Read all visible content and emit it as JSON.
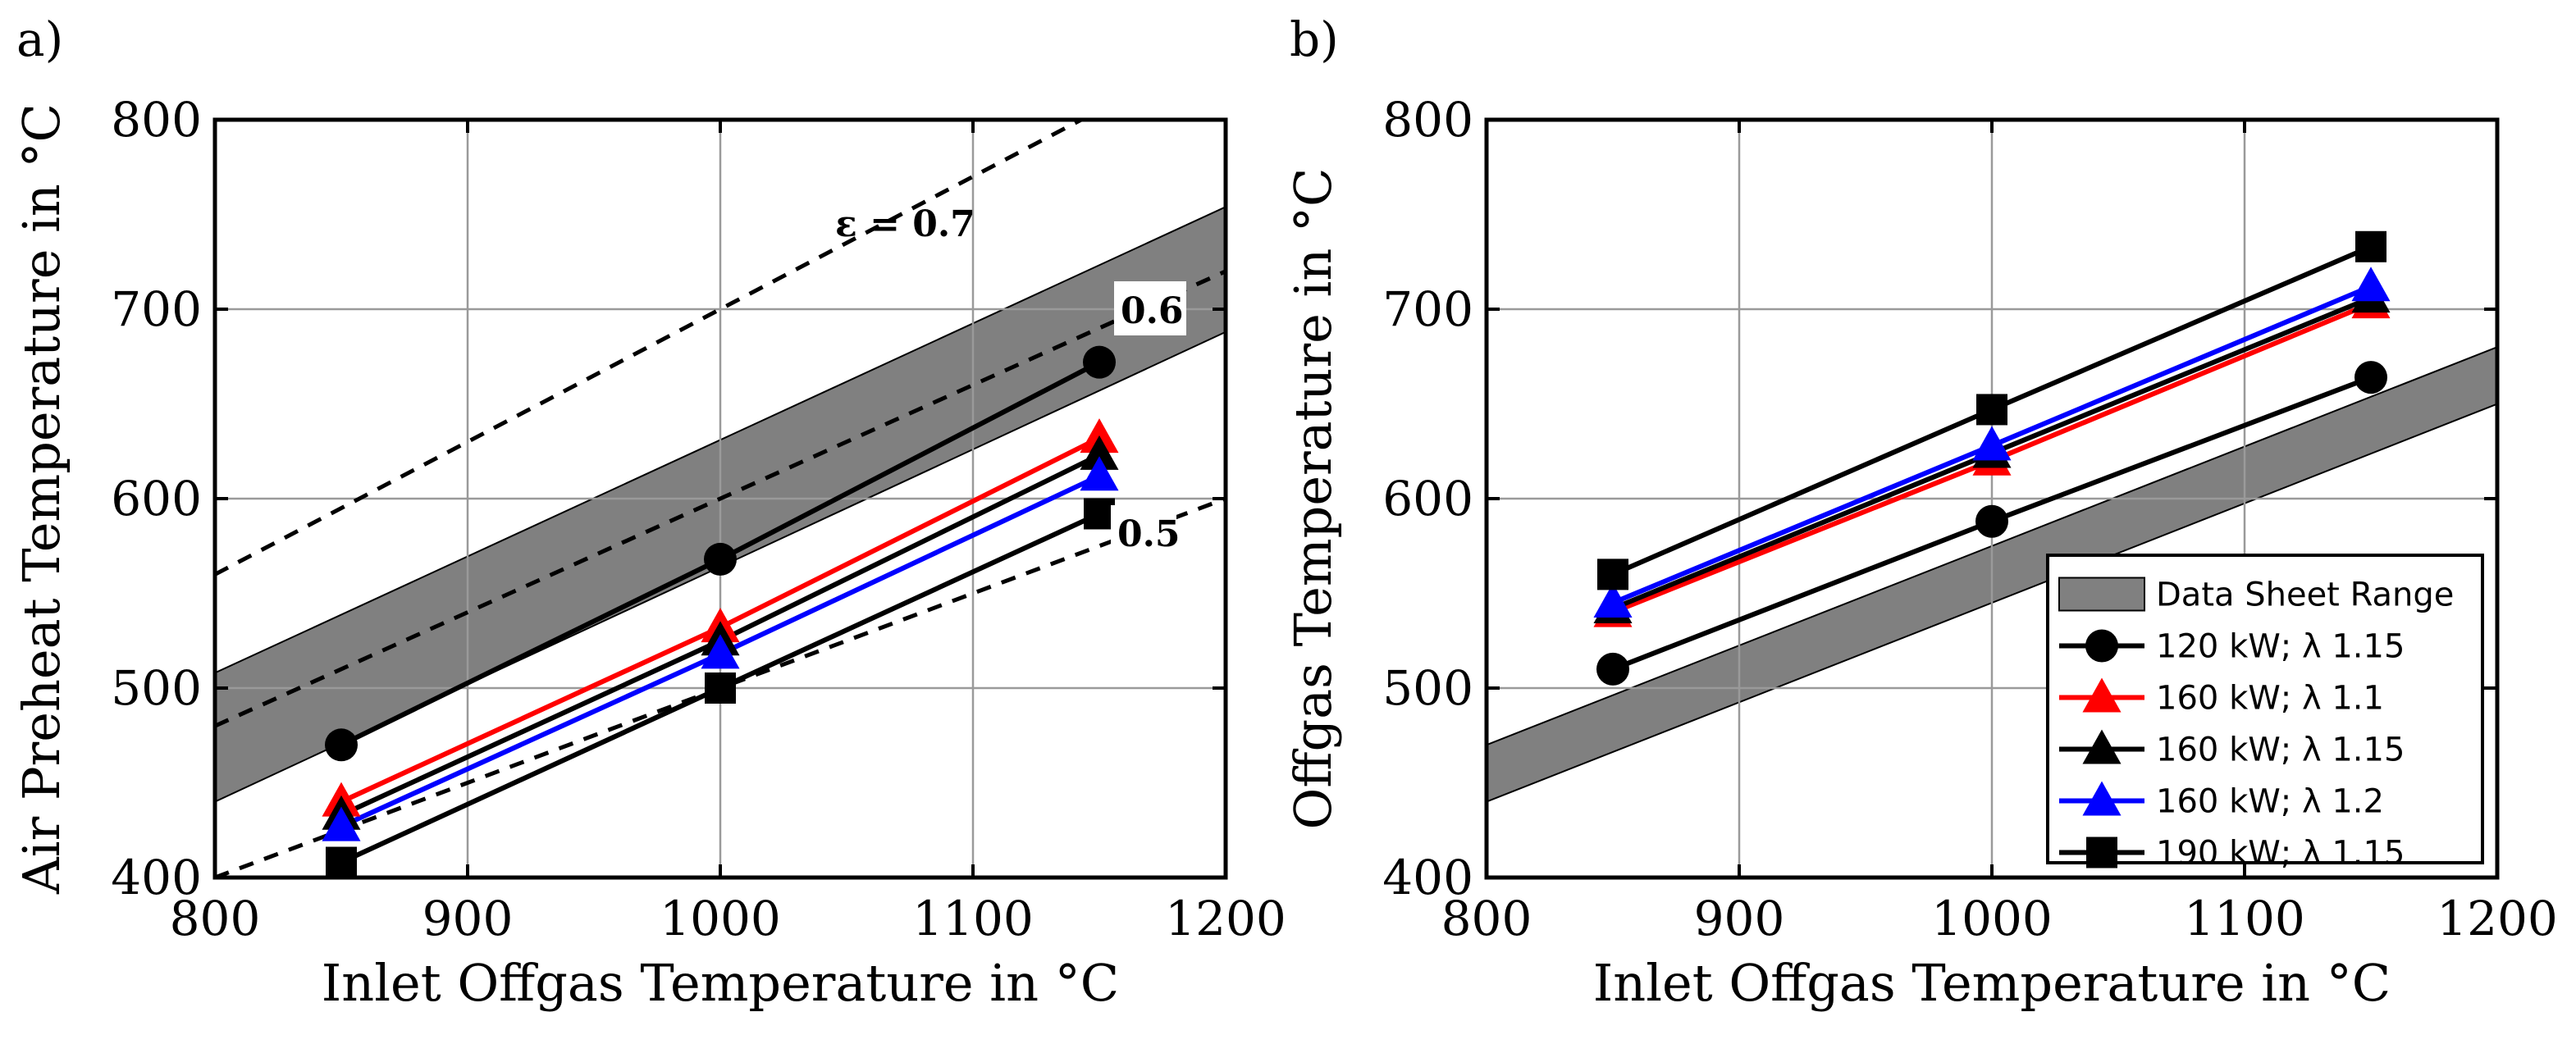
{
  "chart_data": [
    {
      "type": "line",
      "panel_label": "a)",
      "xlabel": "Inlet Offgas Temperature in °C",
      "ylabel": "Air Preheat Temperature in °C",
      "xlim": [
        800,
        1200
      ],
      "ylim": [
        400,
        800
      ],
      "xticks": [
        "800",
        "900",
        "1000",
        "1100",
        "1200"
      ],
      "yticks": [
        "400",
        "500",
        "600",
        "700",
        "800"
      ],
      "grid": true,
      "band": {
        "name": "Data Sheet Range",
        "x": [
          800,
          1200
        ],
        "lower": [
          440,
          688
        ],
        "upper": [
          508,
          754
        ]
      },
      "reference_lines": [
        {
          "label": "ε = 0.7",
          "x": [
            800,
            1200
          ],
          "y": [
            560,
            840
          ]
        },
        {
          "label": "0.6",
          "x": [
            800,
            1200
          ],
          "y": [
            480,
            720
          ]
        },
        {
          "label": "0.5",
          "x": [
            800,
            1200
          ],
          "y": [
            400,
            600
          ]
        }
      ],
      "series": [
        {
          "name": "120 kW; λ 1.15",
          "color": "#000000",
          "marker": "circle",
          "x": [
            850,
            1000,
            1150
          ],
          "y": [
            470,
            568,
            672
          ]
        },
        {
          "name": "160 kW; λ 1.1",
          "color": "#ff0000",
          "marker": "triangle",
          "x": [
            850,
            1000,
            1150
          ],
          "y": [
            440,
            532,
            632
          ]
        },
        {
          "name": "160 kW; λ 1.15",
          "color": "#000000",
          "marker": "triangle",
          "x": [
            850,
            1000,
            1150
          ],
          "y": [
            433,
            525,
            623
          ]
        },
        {
          "name": "160 kW; λ 1.2",
          "color": "#0000ff",
          "marker": "triangle",
          "x": [
            850,
            1000,
            1150
          ],
          "y": [
            427,
            518,
            612
          ]
        },
        {
          "name": "190 kW; λ 1.15",
          "color": "#000000",
          "marker": "square",
          "x": [
            850,
            1000,
            1150
          ],
          "y": [
            408,
            500,
            592
          ]
        }
      ]
    },
    {
      "type": "line",
      "panel_label": "b)",
      "xlabel": "Inlet Offgas Temperature in °C",
      "ylabel": "Offgas Temperature in °C",
      "xlim": [
        800,
        1200
      ],
      "ylim": [
        400,
        800
      ],
      "xticks": [
        "800",
        "900",
        "1000",
        "1100",
        "1200"
      ],
      "yticks": [
        "400",
        "500",
        "600",
        "700",
        "800"
      ],
      "grid": true,
      "band": {
        "name": "Data Sheet Range",
        "x": [
          800,
          1200
        ],
        "lower": [
          440,
          650
        ],
        "upper": [
          470,
          680
        ]
      },
      "legend": {
        "position": "bottom-right"
      },
      "series": [
        {
          "name": "120 kW; λ 1.15",
          "color": "#000000",
          "marker": "circle",
          "x": [
            850,
            1000,
            1150
          ],
          "y": [
            510,
            588,
            664
          ]
        },
        {
          "name": "160 kW; λ 1.1",
          "color": "#ff0000",
          "marker": "triangle",
          "x": [
            850,
            1000,
            1150
          ],
          "y": [
            540,
            620,
            703
          ]
        },
        {
          "name": "160 kW; λ 1.15",
          "color": "#000000",
          "marker": "triangle",
          "x": [
            850,
            1000,
            1150
          ],
          "y": [
            542,
            624,
            706
          ]
        },
        {
          "name": "160 kW; λ 1.2",
          "color": "#0000ff",
          "marker": "triangle",
          "x": [
            850,
            1000,
            1150
          ],
          "y": [
            545,
            628,
            712
          ]
        },
        {
          "name": "190 kW; λ 1.15",
          "color": "#000000",
          "marker": "square",
          "x": [
            850,
            1000,
            1150
          ],
          "y": [
            560,
            647,
            733
          ]
        }
      ]
    }
  ]
}
